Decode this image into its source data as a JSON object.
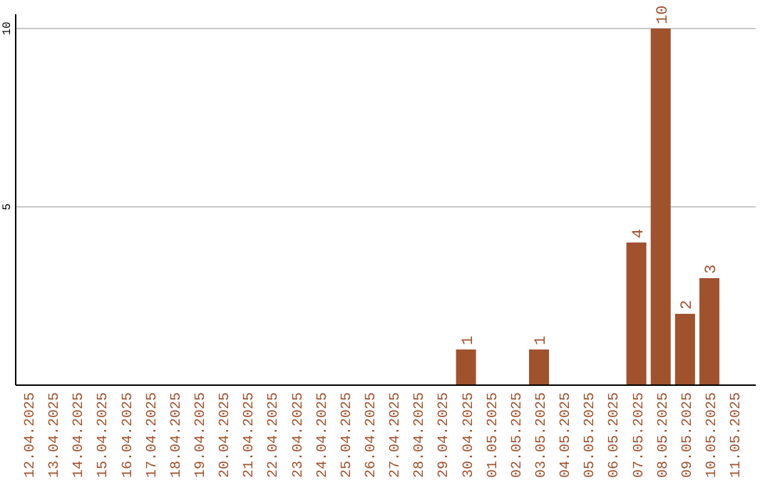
{
  "chart_data": {
    "type": "bar",
    "categories": [
      "12.04.2025",
      "13.04.2025",
      "14.04.2025",
      "15.04.2025",
      "16.04.2025",
      "17.04.2025",
      "18.04.2025",
      "19.04.2025",
      "20.04.2025",
      "21.04.2025",
      "22.04.2025",
      "23.04.2025",
      "24.04.2025",
      "25.04.2025",
      "26.04.2025",
      "27.04.2025",
      "28.04.2025",
      "29.04.2025",
      "30.04.2025",
      "01.05.2025",
      "02.05.2025",
      "03.05.2025",
      "04.05.2025",
      "05.05.2025",
      "06.05.2025",
      "07.05.2025",
      "08.05.2025",
      "09.05.2025",
      "10.05.2025",
      "11.05.2025"
    ],
    "values": [
      0,
      0,
      0,
      0,
      0,
      0,
      0,
      0,
      0,
      0,
      0,
      0,
      0,
      0,
      0,
      0,
      0,
      0,
      1,
      0,
      0,
      1,
      0,
      0,
      0,
      4,
      10,
      2,
      3,
      0
    ],
    "value_labels": [
      null,
      null,
      null,
      null,
      null,
      null,
      null,
      null,
      null,
      null,
      null,
      null,
      null,
      null,
      null,
      null,
      null,
      null,
      "1",
      null,
      null,
      "1",
      null,
      null,
      null,
      "4",
      "10",
      "2",
      "3",
      null
    ],
    "color": "#a0522d",
    "ylim": [
      0,
      10.4
    ],
    "yticks": [
      5,
      10
    ],
    "grid": "y"
  }
}
